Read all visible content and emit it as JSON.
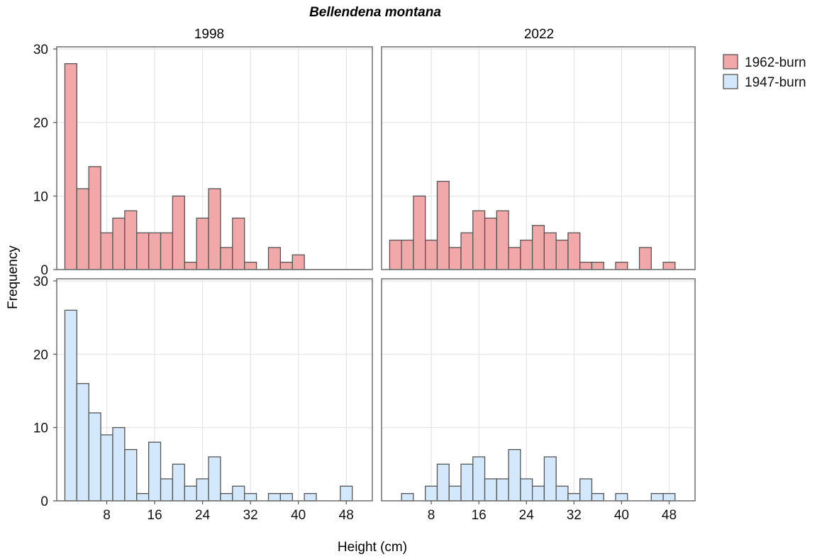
{
  "chart_data": {
    "type": "histogram-facets",
    "title": "Bellendena montana",
    "xlabel": "Height (cm)",
    "ylabel": "Frequency",
    "facet_columns": [
      "1998",
      "2022"
    ],
    "bin_width": 2,
    "first_bin_start": 1,
    "xlim": [
      0,
      52
    ],
    "x_ticks": [
      8,
      16,
      24,
      32,
      40,
      48
    ],
    "ylim": [
      0,
      30
    ],
    "y_ticks": [
      0,
      10,
      20,
      30
    ],
    "grid": true,
    "legend": {
      "placement": "right",
      "entries": [
        {
          "label": "1962-burn",
          "fill": "#F2A8A8",
          "stroke": "#555555"
        },
        {
          "label": "1947-burn",
          "fill": "#D3E8FB",
          "stroke": "#555555"
        }
      ]
    },
    "panels": [
      {
        "facet": "1998",
        "series": "1962-burn",
        "values": [
          28,
          11,
          14,
          5,
          7,
          8,
          5,
          5,
          5,
          10,
          1,
          7,
          11,
          3,
          7,
          1,
          0,
          3,
          1,
          2,
          0,
          0,
          0,
          0,
          0
        ]
      },
      {
        "facet": "2022",
        "series": "1962-burn",
        "values": [
          4,
          4,
          10,
          4,
          12,
          3,
          5,
          8,
          7,
          8,
          3,
          4,
          6,
          5,
          4,
          5,
          1,
          1,
          0,
          1,
          0,
          3,
          0,
          1
        ]
      },
      {
        "facet": "1998",
        "series": "1947-burn",
        "values": [
          26,
          16,
          12,
          9,
          10,
          7,
          1,
          8,
          3,
          5,
          2,
          3,
          6,
          1,
          2,
          1,
          0,
          1,
          1,
          0,
          1,
          0,
          0,
          2
        ]
      },
      {
        "facet": "2022",
        "series": "1947-burn",
        "values": [
          0,
          1,
          0,
          2,
          5,
          2,
          5,
          6,
          3,
          3,
          7,
          3,
          2,
          6,
          2,
          1,
          3,
          1,
          0,
          1,
          0,
          0,
          1,
          1
        ]
      }
    ]
  }
}
